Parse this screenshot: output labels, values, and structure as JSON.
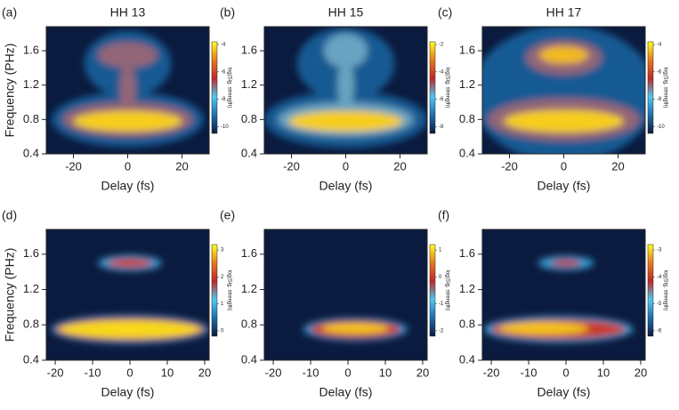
{
  "chart_data": [
    {
      "type": "heatmap",
      "panel_label": "(a)",
      "title": "HH 13",
      "xlabel": "Delay (fs)",
      "ylabel": "Frequency (PHz)",
      "xlim": [
        -30,
        30
      ],
      "xticks": [
        -20,
        0,
        20
      ],
      "ylim": [
        0.4,
        1.88
      ],
      "yticks": [
        0.4,
        0.8,
        1.2,
        1.6
      ],
      "colormap": [
        "#0b1b3f",
        "#1e6fb0",
        "#4cc9f0",
        "#c0282a",
        "#e87a1a",
        "#ffff20"
      ],
      "colorbar": {
        "label": "log(Sig. strength)",
        "lim": [
          -10.5,
          -3.8
        ],
        "ticks": [
          -4,
          -6,
          -8,
          -10
        ]
      },
      "features": [
        {
          "x": 0,
          "y": 0.8,
          "rx": 28,
          "ry": 0.32,
          "value": -9.5
        },
        {
          "x": 0,
          "y": 1.45,
          "rx": 16,
          "ry": 0.38,
          "value": -9.5
        },
        {
          "x": 0,
          "y": 0.8,
          "rx": 24,
          "ry": 0.2,
          "value": -7
        },
        {
          "x": 0,
          "y": 1.55,
          "rx": 11,
          "ry": 0.15,
          "value": -7
        },
        {
          "x": 0,
          "y": 1.15,
          "rx": 3,
          "ry": 0.3,
          "value": -7
        },
        {
          "x": 0,
          "y": 0.78,
          "rx": 20,
          "ry": 0.12,
          "value": -4.3
        }
      ]
    },
    {
      "type": "heatmap",
      "panel_label": "(b)",
      "title": "HH 15",
      "xlabel": "Delay (fs)",
      "xlim": [
        -30,
        30
      ],
      "xticks": [
        -20,
        0,
        20
      ],
      "ylim": [
        0.4,
        1.88
      ],
      "yticks": [
        0.4,
        0.8,
        1.2,
        1.6
      ],
      "colormap": [
        "#0b1b3f",
        "#1e6fb0",
        "#4cc9f0",
        "#c0282a",
        "#e87a1a",
        "#ffff20"
      ],
      "colorbar": {
        "label": "log(Sig. strength)",
        "lim": [
          -8.5,
          -1.8
        ],
        "ticks": [
          -2,
          -4,
          -6,
          -8
        ]
      },
      "features": [
        {
          "x": 0,
          "y": 0.8,
          "rx": 30,
          "ry": 0.33,
          "value": -7.5
        },
        {
          "x": 0,
          "y": 1.45,
          "rx": 18,
          "ry": 0.42,
          "value": -7.5
        },
        {
          "x": 0,
          "y": 0.8,
          "rx": 25,
          "ry": 0.2,
          "value": -5.5
        },
        {
          "x": 0,
          "y": 1.6,
          "rx": 8,
          "ry": 0.2,
          "value": -5.5
        },
        {
          "x": 0,
          "y": 1.2,
          "rx": 3,
          "ry": 0.3,
          "value": -5.5
        },
        {
          "x": 0,
          "y": 0.78,
          "rx": 21,
          "ry": 0.12,
          "value": -2.3
        }
      ]
    },
    {
      "type": "heatmap",
      "panel_label": "(c)",
      "title": "HH 17",
      "xlabel": "Delay (fs)",
      "xlim": [
        -30,
        30
      ],
      "xticks": [
        -20,
        0,
        20
      ],
      "ylim": [
        0.4,
        1.88
      ],
      "yticks": [
        0.4,
        0.8,
        1.2,
        1.6
      ],
      "colormap": [
        "#0b1b3f",
        "#1e6fb0",
        "#4cc9f0",
        "#c0282a",
        "#e87a1a",
        "#ffff20"
      ],
      "colorbar": {
        "label": "log(Sig. strength)",
        "lim": [
          -10.5,
          -3.8
        ],
        "ticks": [
          -4,
          -6,
          -8,
          -10
        ]
      },
      "features": [
        {
          "x": 0,
          "y": 1.1,
          "rx": 34,
          "ry": 0.8,
          "value": -9.5
        },
        {
          "x": 0,
          "y": 0.8,
          "rx": 28,
          "ry": 0.25,
          "value": -7
        },
        {
          "x": 0,
          "y": 1.52,
          "rx": 14,
          "ry": 0.2,
          "value": -7
        },
        {
          "x": 0,
          "y": 0.78,
          "rx": 22,
          "ry": 0.13,
          "value": -4.3
        },
        {
          "x": 0,
          "y": 1.55,
          "rx": 9,
          "ry": 0.1,
          "value": -4.5
        }
      ]
    },
    {
      "type": "heatmap",
      "panel_label": "(d)",
      "xlabel": "Delay (fs)",
      "ylabel": "Frequency (PHz)",
      "xlim": [
        -22.4,
        21.2
      ],
      "xticks": [
        -20,
        -10,
        0,
        10,
        20
      ],
      "ylim": [
        0.4,
        1.88
      ],
      "yticks": [
        0.4,
        0.8,
        1.2,
        1.6
      ],
      "colormap": [
        "#0b1b3f",
        "#1e6fb0",
        "#4cc9f0",
        "#c0282a",
        "#e87a1a",
        "#ffff20"
      ],
      "colorbar": {
        "label": "log(Sig. strength)",
        "lim": [
          -0.2,
          3.2
        ],
        "ticks": [
          3,
          2,
          1,
          0
        ]
      },
      "features": [
        {
          "x": 0,
          "y": 0.75,
          "rx": 21,
          "ry": 0.16,
          "value": 0.8
        },
        {
          "x": 0,
          "y": 0.75,
          "rx": 20,
          "ry": 0.13,
          "value": 2
        },
        {
          "x": 0,
          "y": 0.75,
          "rx": 19,
          "ry": 0.1,
          "value": 3
        },
        {
          "x": 0,
          "y": 1.5,
          "rx": 8.5,
          "ry": 0.09,
          "value": 0.8
        },
        {
          "x": 0,
          "y": 1.5,
          "rx": 6,
          "ry": 0.05,
          "value": 2
        }
      ]
    },
    {
      "type": "heatmap",
      "panel_label": "(e)",
      "xlabel": "Delay (fs)",
      "xlim": [
        -22.4,
        21.2
      ],
      "xticks": [
        -20,
        -10,
        0,
        10,
        20
      ],
      "ylim": [
        0.4,
        1.88
      ],
      "yticks": [
        0.4,
        0.8,
        1.2,
        1.6
      ],
      "colormap": [
        "#0b1b3f",
        "#1e6fb0",
        "#4cc9f0",
        "#c0282a",
        "#e87a1a",
        "#ffff20"
      ],
      "colorbar": {
        "label": "log(Sig. strength)",
        "lim": [
          -2.2,
          1.2
        ],
        "ticks": [
          1,
          0,
          -1,
          -2
        ]
      },
      "features": [
        {
          "x": 2,
          "y": 0.75,
          "rx": 14,
          "ry": 0.13,
          "value": -1.3
        },
        {
          "x": 2,
          "y": 0.75,
          "rx": 12,
          "ry": 0.1,
          "value": 0
        },
        {
          "x": 2,
          "y": 0.76,
          "rx": 9,
          "ry": 0.06,
          "value": 0.9
        }
      ]
    },
    {
      "type": "heatmap",
      "panel_label": "(f)",
      "xlabel": "Delay (fs)",
      "xlim": [
        -22.4,
        21.2
      ],
      "xticks": [
        -20,
        -10,
        0,
        10,
        20
      ],
      "ylim": [
        0.4,
        1.88
      ],
      "yticks": [
        0.4,
        0.8,
        1.2,
        1.6
      ],
      "colormap": [
        "#0b1b3f",
        "#1e6fb0",
        "#4cc9f0",
        "#c0282a",
        "#e87a1a",
        "#ffff20"
      ],
      "colorbar": {
        "label": "log(Sig. strength)",
        "lim": [
          -6.2,
          -2.8
        ],
        "ticks": [
          -3,
          -4,
          -5,
          -6
        ]
      },
      "features": [
        {
          "x": -2,
          "y": 0.75,
          "rx": 20,
          "ry": 0.15,
          "value": -5.2
        },
        {
          "x": -2,
          "y": 0.75,
          "rx": 18,
          "ry": 0.11,
          "value": -4
        },
        {
          "x": -6,
          "y": 0.76,
          "rx": 12,
          "ry": 0.07,
          "value": -3.1
        },
        {
          "x": 0,
          "y": 1.5,
          "rx": 7.5,
          "ry": 0.08,
          "value": -5.2
        },
        {
          "x": 0,
          "y": 1.5,
          "rx": 4,
          "ry": 0.04,
          "value": -4.2
        }
      ]
    }
  ]
}
